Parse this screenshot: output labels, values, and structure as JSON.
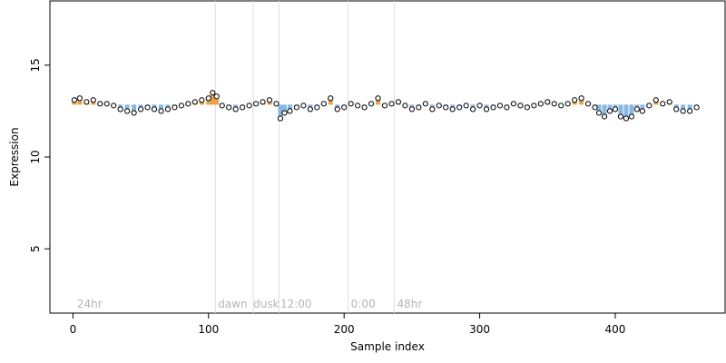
{
  "chart_data": {
    "type": "scatter",
    "title": "",
    "xlabel": "Sample index",
    "ylabel": "Expression",
    "xlim": [
      -17,
      481
    ],
    "ylim": [
      1.5,
      18.5
    ],
    "x_ticks": [
      0,
      100,
      200,
      300,
      400
    ],
    "y_ticks": [
      5,
      10,
      15
    ],
    "grid": false,
    "legend": "none",
    "vertical_lines": [
      105,
      133,
      152,
      203,
      237
    ],
    "annotations": [
      {
        "text": "24hr",
        "x": 3
      },
      {
        "text": "dawn",
        "x": 107
      },
      {
        "text": "dusk",
        "x": 133
      },
      {
        "text": "12:00",
        "x": 153
      },
      {
        "text": "0:00",
        "x": 205
      },
      {
        "text": "48hr",
        "x": 239
      }
    ],
    "annotation_y": 2,
    "baseline": 12.85,
    "colors": {
      "point_fill": "#ffffff",
      "point_stroke": "#000000",
      "bar_above": "#e8a346",
      "bar_below": "#87b7e3",
      "vline": "#dedede",
      "annotation": "#b5b5b5"
    },
    "series": [
      {
        "x": [
          1,
          5,
          10,
          15,
          20,
          25,
          30,
          35,
          40,
          45,
          50,
          55,
          60,
          65,
          70,
          75,
          80,
          85,
          90,
          95,
          100,
          103,
          106,
          110,
          115,
          120,
          125,
          130,
          135,
          140,
          145,
          150,
          153,
          156,
          160,
          165,
          170,
          175,
          180,
          185,
          190,
          195,
          200,
          205,
          210,
          215,
          220,
          225,
          230,
          235,
          240,
          245,
          250,
          255,
          260,
          265,
          270,
          275,
          280,
          285,
          290,
          295,
          300,
          305,
          310,
          315,
          320,
          325,
          330,
          335,
          340,
          345,
          350,
          355,
          360,
          365,
          370,
          375,
          380,
          385,
          388,
          392,
          396,
          400,
          404,
          408,
          412,
          416,
          420,
          425,
          430,
          435,
          440,
          445,
          450,
          455,
          460
        ],
        "values": [
          13.1,
          13.2,
          13.0,
          13.1,
          12.9,
          12.9,
          12.8,
          12.6,
          12.5,
          12.4,
          12.6,
          12.7,
          12.6,
          12.5,
          12.6,
          12.7,
          12.8,
          12.9,
          13.0,
          13.1,
          13.2,
          13.5,
          13.3,
          12.8,
          12.7,
          12.6,
          12.7,
          12.8,
          12.9,
          13.0,
          13.1,
          12.9,
          12.1,
          12.4,
          12.5,
          12.7,
          12.8,
          12.6,
          12.7,
          12.9,
          13.2,
          12.6,
          12.7,
          12.9,
          12.8,
          12.7,
          12.9,
          13.2,
          12.8,
          12.9,
          13.0,
          12.8,
          12.6,
          12.7,
          12.9,
          12.6,
          12.8,
          12.7,
          12.6,
          12.7,
          12.8,
          12.6,
          12.8,
          12.6,
          12.7,
          12.8,
          12.7,
          12.9,
          12.8,
          12.7,
          12.8,
          12.9,
          13.0,
          12.9,
          12.8,
          12.9,
          13.1,
          13.2,
          12.9,
          12.7,
          12.4,
          12.2,
          12.5,
          12.6,
          12.2,
          12.1,
          12.2,
          12.6,
          12.5,
          12.8,
          13.1,
          12.9,
          13.0,
          12.6,
          12.5,
          12.5,
          12.7
        ]
      }
    ]
  }
}
